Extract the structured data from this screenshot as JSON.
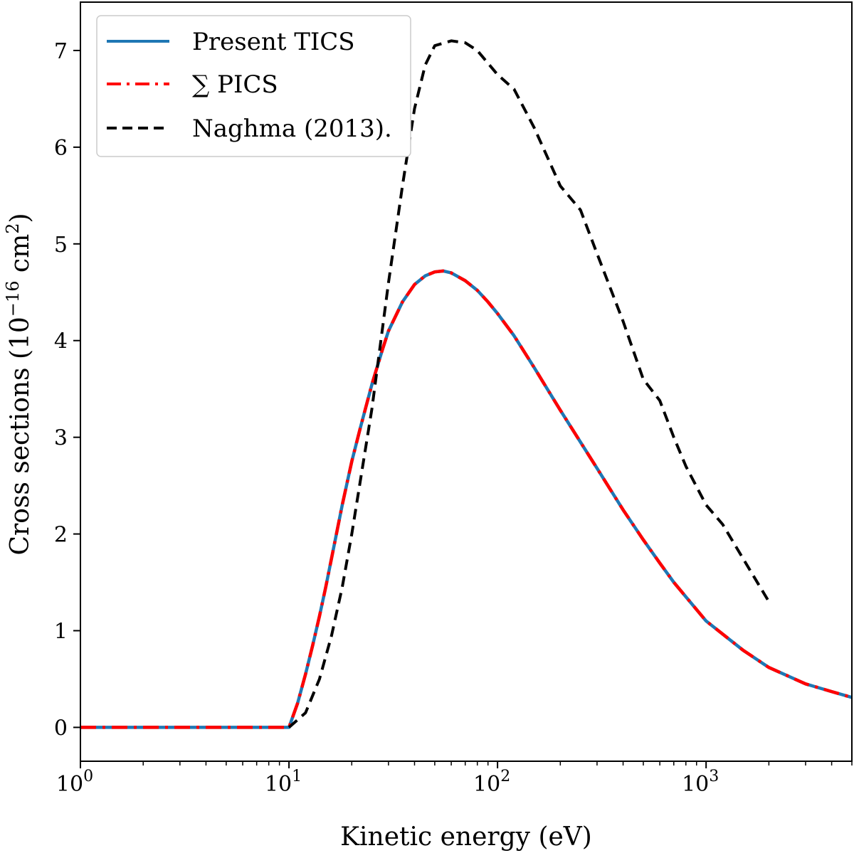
{
  "chart_data": {
    "type": "line",
    "xlabel": "Kinetic energy (eV)",
    "ylabel": "Cross sections (10",
    "ylabel_exp": "−16",
    "ylabel_unit": " cm",
    "ylabel_unit_exp": "2",
    "ylabel_close": ")",
    "xscale": "log",
    "xlim": [
      1,
      5000
    ],
    "ylim": [
      -0.35,
      7.5
    ],
    "grid": false,
    "legend_position": "top-left",
    "x_ticks": [
      {
        "base": "10",
        "exp": "0",
        "value": 1
      },
      {
        "base": "10",
        "exp": "1",
        "value": 10
      },
      {
        "base": "10",
        "exp": "2",
        "value": 100
      },
      {
        "base": "10",
        "exp": "3",
        "value": 1000
      }
    ],
    "y_ticks": [
      "0",
      "1",
      "2",
      "3",
      "4",
      "5",
      "6",
      "7"
    ],
    "series": [
      {
        "name": "Present TICS",
        "color": "#1f77b4",
        "style": "solid",
        "x": [
          1,
          2,
          5,
          10,
          11,
          12,
          13,
          14,
          15,
          16,
          18,
          20,
          22,
          25,
          28,
          30,
          35,
          40,
          45,
          50,
          55,
          60,
          70,
          80,
          90,
          100,
          120,
          150,
          200,
          250,
          300,
          400,
          500,
          600,
          700,
          800,
          1000,
          1500,
          2000,
          3000,
          4000,
          5000
        ],
        "y": [
          0,
          0,
          0,
          0,
          0.25,
          0.55,
          0.85,
          1.15,
          1.45,
          1.75,
          2.3,
          2.75,
          3.1,
          3.55,
          3.9,
          4.1,
          4.4,
          4.58,
          4.67,
          4.71,
          4.72,
          4.7,
          4.62,
          4.52,
          4.4,
          4.28,
          4.05,
          3.72,
          3.28,
          2.95,
          2.68,
          2.25,
          1.94,
          1.7,
          1.5,
          1.35,
          1.1,
          0.8,
          0.62,
          0.45,
          0.37,
          0.31
        ]
      },
      {
        "name": "∑ PICS",
        "color": "#ff0000",
        "style": "dashdot",
        "x": [
          1,
          2,
          5,
          10,
          11,
          12,
          13,
          14,
          15,
          16,
          18,
          20,
          22,
          25,
          28,
          30,
          35,
          40,
          45,
          50,
          55,
          60,
          70,
          80,
          90,
          100,
          120,
          150,
          200,
          250,
          300,
          400,
          500,
          600,
          700,
          800,
          1000,
          1500,
          2000,
          3000,
          4000,
          5000
        ],
        "y": [
          0,
          0,
          0,
          0,
          0.25,
          0.55,
          0.85,
          1.15,
          1.45,
          1.75,
          2.3,
          2.75,
          3.1,
          3.55,
          3.9,
          4.1,
          4.4,
          4.58,
          4.67,
          4.71,
          4.72,
          4.7,
          4.62,
          4.52,
          4.4,
          4.28,
          4.05,
          3.72,
          3.28,
          2.95,
          2.68,
          2.25,
          1.94,
          1.7,
          1.5,
          1.35,
          1.1,
          0.8,
          0.62,
          0.45,
          0.37,
          0.31
        ]
      },
      {
        "name": "Naghma (2013).",
        "color": "#000000",
        "style": "dashed",
        "x": [
          10,
          12,
          14,
          16,
          18,
          20,
          25,
          30,
          35,
          40,
          45,
          50,
          60,
          70,
          80,
          100,
          120,
          150,
          200,
          250,
          300,
          400,
          500,
          600,
          700,
          800,
          1000,
          1200,
          1500,
          2000
        ],
        "y": [
          0,
          0.15,
          0.5,
          0.95,
          1.45,
          2.0,
          3.3,
          4.6,
          5.6,
          6.4,
          6.85,
          7.05,
          7.1,
          7.08,
          7.0,
          6.75,
          6.6,
          6.2,
          5.6,
          5.35,
          4.9,
          4.2,
          3.6,
          3.38,
          3.0,
          2.7,
          2.3,
          2.1,
          1.75,
          1.3
        ]
      }
    ]
  }
}
